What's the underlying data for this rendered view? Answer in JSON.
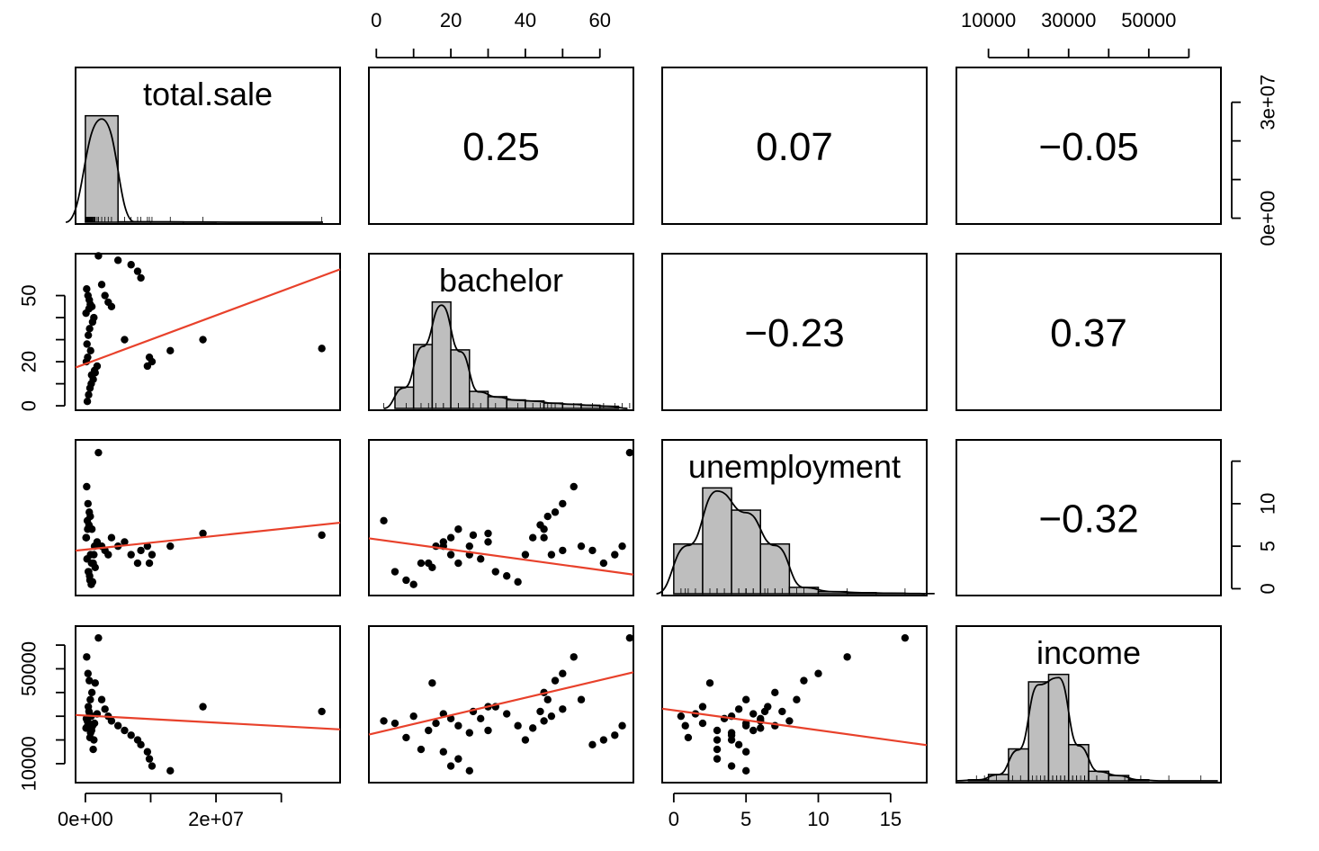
{
  "chart_data": {
    "type": "scatter-matrix",
    "variables": [
      "total.sale",
      "bachelor",
      "unemployment",
      "income"
    ],
    "correlations": [
      {
        "row": 0,
        "col": 1,
        "label": "0.25"
      },
      {
        "row": 0,
        "col": 2,
        "label": "0.07"
      },
      {
        "row": 0,
        "col": 3,
        "label": "−0.05"
      },
      {
        "row": 1,
        "col": 2,
        "label": "−0.23"
      },
      {
        "row": 1,
        "col": 3,
        "label": "0.37"
      },
      {
        "row": 2,
        "col": 3,
        "label": "−0.32"
      }
    ],
    "axes": {
      "total.sale": {
        "range": [
          -1500000,
          39000000
        ],
        "ticks": [
          0,
          10000000,
          20000000,
          30000000
        ],
        "tick_labels": [
          "0e+00",
          "",
          "2e+07",
          ""
        ]
      },
      "total.sale_side": {
        "range": [
          -1500000,
          39000000
        ],
        "ticks": [
          0,
          10000000,
          20000000,
          30000000
        ],
        "tick_labels": [
          "0e+00",
          "",
          "",
          "3e+07"
        ]
      },
      "bachelor": {
        "range": [
          -2,
          69
        ],
        "ticks": [
          0,
          10,
          20,
          30,
          40,
          50,
          60
        ],
        "tick_labels": [
          "0",
          "",
          "20",
          "",
          "40",
          "",
          "60"
        ],
        "left_ticks": [
          0,
          10,
          20,
          30,
          40,
          50
        ],
        "left_tick_labels": [
          "0",
          "",
          "20",
          "",
          "",
          "50"
        ]
      },
      "unemployment": {
        "range": [
          -0.8,
          17.5
        ],
        "ticks": [
          0,
          5,
          10,
          15
        ],
        "tick_labels": [
          "0",
          "5",
          "10",
          "15"
        ],
        "right_tick_labels": [
          "0",
          "5",
          "10",
          ""
        ]
      },
      "income": {
        "range": [
          2000,
          68000
        ],
        "ticks": [
          10000,
          20000,
          30000,
          40000,
          50000,
          60000
        ],
        "tick_labels": [
          "10000",
          "",
          "30000",
          "",
          "50000",
          ""
        ],
        "left_ticks": [
          10000,
          20000,
          30000,
          40000,
          50000,
          60000
        ],
        "left_tick_labels": [
          "10000",
          "",
          "",
          "",
          "50000",
          ""
        ]
      }
    },
    "histograms": {
      "total.sale": {
        "breaks": [
          0,
          5000000,
          10000000,
          15000000,
          20000000,
          25000000,
          30000000,
          35000000
        ],
        "heights": [
          1.0,
          0.004,
          0.003,
          0.002,
          0.0,
          0.0,
          0.0
        ]
      },
      "bachelor": {
        "breaks": [
          5,
          10,
          15,
          20,
          25,
          30,
          35,
          40,
          45,
          50,
          55,
          60,
          65
        ],
        "heights": [
          0.2,
          0.6,
          1.0,
          0.55,
          0.16,
          0.11,
          0.08,
          0.07,
          0.05,
          0.04,
          0.03,
          0.02
        ]
      },
      "unemployment": {
        "breaks": [
          0,
          2,
          4,
          6,
          8,
          10,
          12,
          14,
          16,
          18
        ],
        "heights": [
          0.47,
          1.0,
          0.79,
          0.47,
          0.06,
          0.02,
          0.01,
          0.005,
          0.002
        ]
      },
      "income": {
        "breaks": [
          5000,
          10000,
          15000,
          20000,
          25000,
          30000,
          35000,
          40000,
          45000,
          50000,
          55000,
          60000,
          65000
        ],
        "heights": [
          0.01,
          0.06,
          0.3,
          0.93,
          1.0,
          0.34,
          0.09,
          0.05,
          0.01,
          0.0,
          0.0,
          0.0
        ]
      }
    },
    "fit_lines": {
      "bachelor~total.sale": {
        "intercept": 19,
        "slope": 1.1e-06
      },
      "unemployment~total.sale": {
        "intercept": 4.6,
        "slope": 8.1e-08
      },
      "income~total.sale": {
        "intercept": 30300,
        "slope": -0.00015
      },
      "unemployment~bachelor": {
        "intercept": 5.8,
        "slope": -0.06
      },
      "income~bachelor": {
        "intercept": 23000,
        "slope": 370
      },
      "income~unemployment": {
        "intercept": 32500,
        "slope": -840
      }
    },
    "scatter_points": {
      "total.sale": [
        2000000,
        200000,
        400000,
        600000,
        1000000,
        2500000,
        3000000,
        3500000,
        4000000,
        5000000,
        6000000,
        7000000,
        8000000,
        8500000,
        9500000,
        9800000,
        10200000,
        13000000,
        18000000,
        36200000,
        300000,
        500000,
        700000,
        900000,
        1200000,
        1500000,
        1800000,
        150000,
        350000,
        800000,
        250000,
        450000,
        650000,
        1100000,
        1300000,
        100000,
        550000,
        750000,
        950000,
        1400000
      ],
      "bachelor": [
        68,
        53,
        50,
        48,
        45,
        55,
        50,
        47,
        45,
        66,
        30,
        64,
        61,
        58,
        18,
        22,
        20,
        25,
        30,
        26,
        2,
        5,
        8,
        10,
        12,
        15,
        18,
        20,
        22,
        25,
        28,
        32,
        35,
        38,
        40,
        42,
        44,
        46,
        14,
        16
      ],
      "unemployment": [
        16,
        12,
        10,
        9,
        7,
        5,
        4.5,
        4,
        6,
        5,
        5.5,
        4,
        3,
        4.5,
        5,
        3,
        4,
        5,
        6.5,
        6.3,
        8,
        2,
        1,
        0.5,
        3,
        2.5,
        5.5,
        6,
        7,
        4,
        3.5,
        2,
        1.5,
        0.8,
        4,
        6,
        7.5,
        8.5,
        3,
        5
      ],
      "income": [
        63000,
        55000,
        48000,
        45000,
        40000,
        37000,
        33000,
        30000,
        28000,
        26000,
        24000,
        22000,
        20000,
        18000,
        15000,
        12000,
        9000,
        7000,
        34000,
        32000,
        28000,
        27000,
        21000,
        30000,
        16000,
        44000,
        31000,
        29000,
        26000,
        23000,
        29000,
        34000,
        31000,
        26000,
        20000,
        25000,
        32000,
        37000,
        24000,
        27000
      ]
    },
    "title": "",
    "xlabel": "",
    "ylabel": ""
  }
}
